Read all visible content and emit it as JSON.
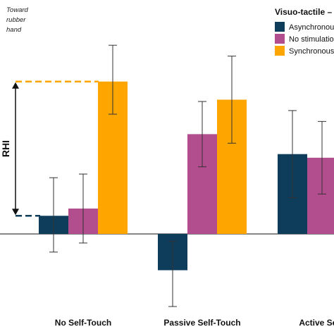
{
  "chart_data": {
    "type": "bar",
    "categories": [
      "No Self-Touch",
      "Passive Self-Touch",
      "Active Self-"
    ],
    "series": [
      {
        "name": "Asynchronous",
        "color": "#0e3d5c",
        "values": [
          0.5,
          -1.0,
          2.2
        ],
        "err_low": [
          -0.5,
          -2.0,
          1.0
        ],
        "err_high": [
          1.55,
          -0.2,
          3.4
        ]
      },
      {
        "name": "No stimulation",
        "color": "#b24d8e",
        "values": [
          0.7,
          2.75,
          2.1
        ],
        "err_low": [
          -0.25,
          1.85,
          1.1
        ],
        "err_high": [
          1.65,
          3.65,
          3.1
        ]
      },
      {
        "name": "Synchronous",
        "color": "#ffa500",
        "values": [
          4.2,
          3.7,
          null
        ],
        "err_low": [
          3.3,
          2.5,
          null
        ],
        "err_high": [
          5.2,
          4.9,
          null
        ]
      }
    ],
    "ylim": [
      -2.1,
      5.3
    ],
    "title": "",
    "xlabel": "",
    "ylabel": "",
    "grid": false,
    "legend": {
      "title": "Visuo-tactile",
      "title_suffix": "–",
      "placement": "top-right"
    },
    "legend_labels": [
      "Asynchronou",
      "No stimulatio",
      "Synchronous"
    ],
    "annotations": {
      "direction_line1": "Toward",
      "direction_line2": "rubber",
      "direction_line3": "hand",
      "rhi_label": "RHI"
    }
  }
}
